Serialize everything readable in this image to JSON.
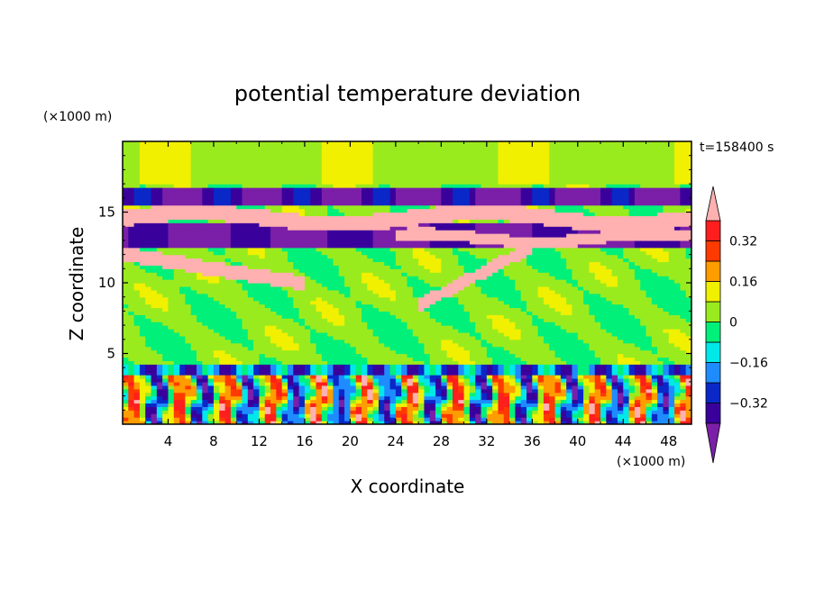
{
  "chart_data": {
    "type": "heatmap",
    "title": "potential temperature deviation",
    "time_label": "t=158400 s",
    "xlabel": "X coordinate",
    "ylabel": "Z coordinate",
    "x_unit": "(×1000 m)",
    "y_unit": "(×1000 m)",
    "xlim": [
      0,
      50
    ],
    "ylim": [
      0,
      20
    ],
    "x_ticks": [
      "4",
      "8",
      "12",
      "16",
      "20",
      "24",
      "28",
      "32",
      "36",
      "40",
      "44",
      "48"
    ],
    "x_tick_values": [
      4,
      8,
      12,
      16,
      20,
      24,
      28,
      32,
      36,
      40,
      44,
      48
    ],
    "y_ticks": [
      "5",
      "10",
      "15"
    ],
    "y_tick_values": [
      5,
      10,
      15
    ],
    "colorbar": {
      "levels": [
        -0.4,
        -0.32,
        -0.24,
        -0.16,
        -0.08,
        0,
        0.08,
        0.16,
        0.24,
        0.32,
        0.4
      ],
      "labels": [
        "0.32",
        "0.16",
        "0",
        "−0.16",
        "−0.32"
      ],
      "label_values": [
        0.32,
        0.16,
        0,
        -0.16,
        -0.32
      ],
      "colors": [
        "#7b1fa8",
        "#3a009c",
        "#0a28c8",
        "#1e8cff",
        "#00e8e8",
        "#00f07a",
        "#9aeb1e",
        "#f0f000",
        "#ff9c00",
        "#ff3a00",
        "#ff1e1e",
        "#ffb0b0"
      ]
    },
    "bands": [
      {
        "z": [
          0.2,
          3.5
        ],
        "value": "mixed"
      },
      {
        "z": [
          3.5,
          4.5
        ],
        "value": -0.3
      },
      {
        "z": [
          4.5,
          10
        ],
        "value": 0.05
      },
      {
        "z": [
          10,
          12
        ],
        "value": 0.4
      },
      {
        "z": [
          12.5,
          14
        ],
        "value": -0.4
      },
      {
        "z": [
          14,
          15.5
        ],
        "value": 0.4
      },
      {
        "z": [
          15.5,
          17
        ],
        "value": -0.4
      },
      {
        "z": [
          17,
          20
        ],
        "value": 0.02
      }
    ]
  }
}
